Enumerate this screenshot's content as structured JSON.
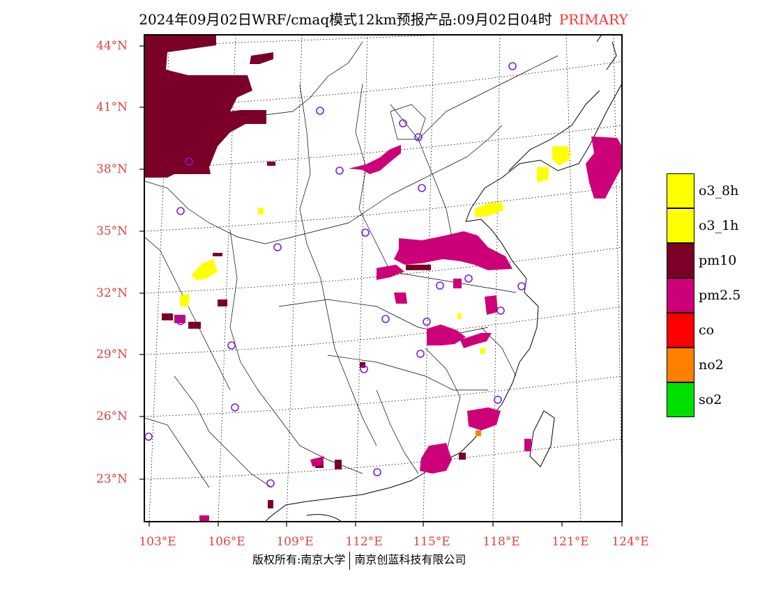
{
  "title": {
    "main": "2024年09月02日WRF/cmaq模式12km预报产品:09月02日04时",
    "tag": "PRIMARY"
  },
  "lat_labels": [
    "44°N",
    "41°N",
    "38°N",
    "35°N",
    "32°N",
    "29°N",
    "26°N",
    "23°N"
  ],
  "lon_labels": [
    "103°E",
    "106°E",
    "109°E",
    "112°E",
    "115°E",
    "118°E",
    "121°E",
    "124°E"
  ],
  "legend": [
    {
      "label": "o3_8h",
      "color": "#ffff00"
    },
    {
      "label": "o3_1h",
      "color": "#ffff00"
    },
    {
      "label": "pm10",
      "color": "#7a0028"
    },
    {
      "label": "pm2.5",
      "color": "#cc0077"
    },
    {
      "label": "co",
      "color": "#ff0000"
    },
    {
      "label": "no2",
      "color": "#ff8000"
    },
    {
      "label": "so2",
      "color": "#00e000"
    }
  ],
  "footer": {
    "left": "版权所有:南京大学",
    "right": "南京创蓝科技有限公司"
  }
}
